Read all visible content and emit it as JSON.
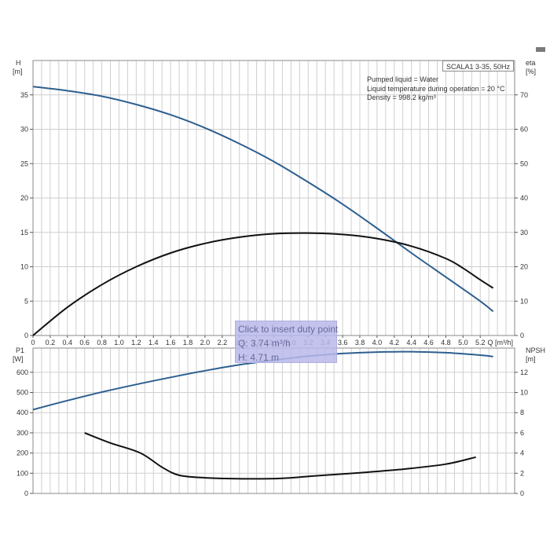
{
  "model_label": "SCALA1 3-35, 50Hz",
  "info_lines": [
    "Pumped liquid = Water",
    "Liquid temperature during operation = 20 °C",
    "Density = 998.2 kg/m³"
  ],
  "tooltip": {
    "title": "Click to insert duty point",
    "q_text": "Q: 3.74 m³/h",
    "h_text": "H: 4.71 m"
  },
  "colors": {
    "blue_curve": "#2d5f8f",
    "black_curve": "#111111"
  },
  "chart_data": [
    {
      "type": "line",
      "x_axis": {
        "label": "Q [m³/h]",
        "range": [
          0,
          5.6
        ],
        "ticks": [
          "0",
          "0.2",
          "0.4",
          "0.6",
          "0.8",
          "1.0",
          "1.2",
          "1.4",
          "1.6",
          "1.8",
          "2.0",
          "2.2",
          "2.4",
          "2.6",
          "2.8",
          "3.0",
          "3.2",
          "3.4",
          "3.6",
          "3.8",
          "4.0",
          "4.2",
          "4.4",
          "4.6",
          "4.8",
          "5.0",
          "5.2"
        ]
      },
      "y_axis_left": {
        "label_top": "H",
        "label_unit": "[m]",
        "range": [
          0,
          40
        ],
        "ticks": [
          0,
          5,
          10,
          15,
          20,
          25,
          30,
          35
        ]
      },
      "y_axis_right": {
        "label_top": "eta",
        "label_unit": "[%]",
        "range": [
          0,
          80
        ],
        "ticks": [
          0,
          10,
          20,
          30,
          40,
          50,
          60,
          70
        ]
      },
      "grid": true,
      "series": [
        {
          "axis": "left",
          "color": "#2d5f8f",
          "x": [
            0,
            0.4,
            0.8,
            1.2,
            1.6,
            2.0,
            2.4,
            2.8,
            3.2,
            3.6,
            4.0,
            4.4,
            4.8,
            5.2,
            5.35
          ],
          "y": [
            36.2,
            35.6,
            34.8,
            33.6,
            32.1,
            30.2,
            27.9,
            25.3,
            22.3,
            19.1,
            15.6,
            12.0,
            8.5,
            5.0,
            3.5
          ]
        },
        {
          "axis": "right",
          "color": "#111111",
          "x": [
            0,
            0.4,
            0.8,
            1.2,
            1.6,
            2.0,
            2.4,
            2.8,
            3.2,
            3.6,
            4.0,
            4.4,
            4.8,
            5.0,
            5.2,
            5.35
          ],
          "y": [
            0,
            8.2,
            14.8,
            20.0,
            24.0,
            26.8,
            28.6,
            29.6,
            29.8,
            29.4,
            28.2,
            26.0,
            22.4,
            19.6,
            16.2,
            13.8
          ]
        }
      ]
    },
    {
      "type": "line",
      "x_axis": {
        "range": [
          0,
          5.6
        ]
      },
      "y_axis_left": {
        "label_top": "P1",
        "label_unit": "[W]",
        "range": [
          0,
          720
        ],
        "ticks": [
          0,
          100,
          200,
          300,
          400,
          500,
          600
        ]
      },
      "y_axis_right": {
        "label_top": "NPSH",
        "label_unit": "[m]",
        "range": [
          0,
          14.4
        ],
        "ticks": [
          0,
          2,
          4,
          6,
          8,
          10,
          12
        ]
      },
      "grid": true,
      "series": [
        {
          "axis": "left",
          "color": "#2d5f8f",
          "x": [
            0,
            0.4,
            0.8,
            1.2,
            1.6,
            2.0,
            2.4,
            2.8,
            3.2,
            3.6,
            4.0,
            4.4,
            4.8,
            5.2,
            5.35
          ],
          "y": [
            415,
            460,
            502,
            540,
            575,
            608,
            637,
            660,
            680,
            693,
            700,
            702,
            697,
            685,
            678
          ]
        },
        {
          "axis": "right",
          "color": "#111111",
          "x": [
            0.6,
            0.9,
            1.25,
            1.5,
            1.7,
            2.0,
            2.5,
            2.9,
            3.3,
            3.8,
            4.3,
            4.8,
            5.15
          ],
          "y": [
            6.0,
            5.0,
            4.0,
            2.6,
            1.8,
            1.55,
            1.45,
            1.5,
            1.75,
            2.05,
            2.4,
            2.9,
            3.6
          ]
        }
      ]
    }
  ]
}
